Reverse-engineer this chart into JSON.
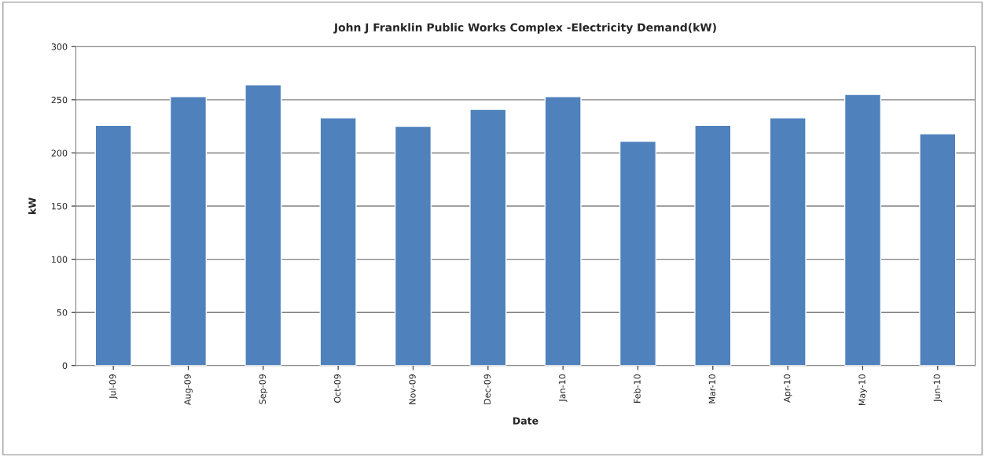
{
  "chart_data": {
    "type": "bar",
    "title": "John J Franklin Public Works Complex -Electricity Demand(kW)",
    "xlabel": "Date",
    "ylabel": "kW",
    "categories": [
      "Jul-09",
      "Aug-09",
      "Sep-09",
      "Oct-09",
      "Nov-09",
      "Dec-09",
      "Jan-10",
      "Feb-10",
      "Mar-10",
      "Apr-10",
      "May-10",
      "Jun-10"
    ],
    "values": [
      226,
      253,
      264,
      233,
      225,
      241,
      253,
      211,
      226,
      233,
      255,
      218
    ],
    "color": "#4f81bd",
    "ylim": [
      0,
      300
    ],
    "yticks": [
      0,
      50,
      100,
      150,
      200,
      250,
      300
    ],
    "grid": "y",
    "legend": false
  }
}
